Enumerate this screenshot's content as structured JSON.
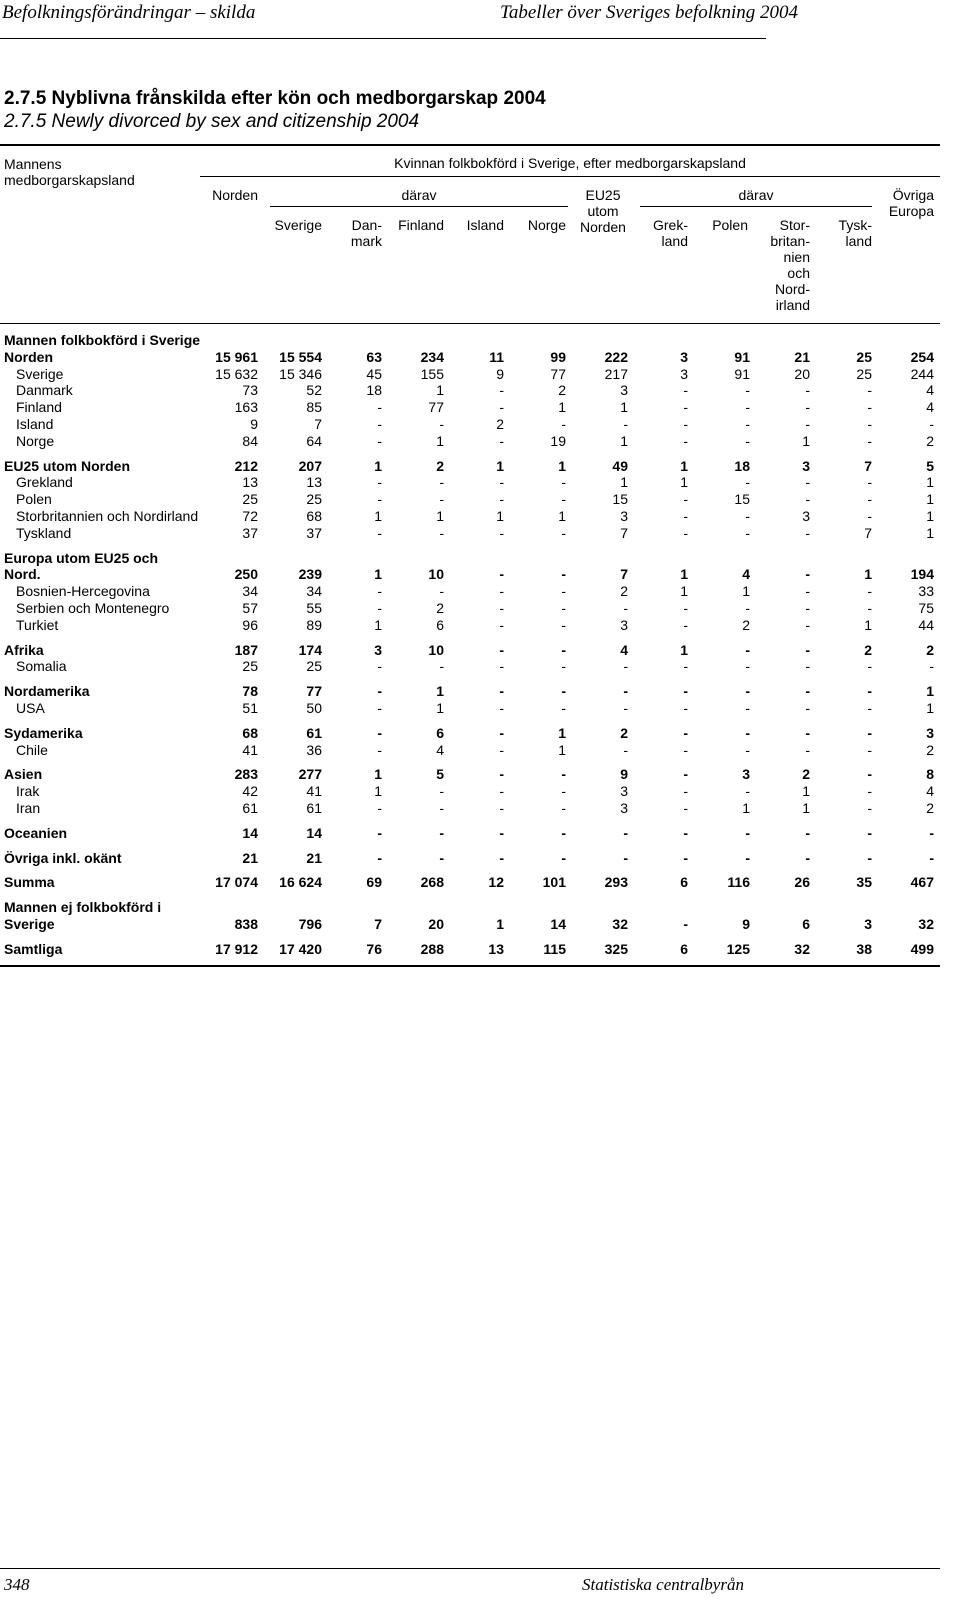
{
  "running_header": {
    "left": "Befolkningsförändringar – skilda",
    "right": "Tabeller över Sveriges befolkning 2004"
  },
  "title_sv": "2.7.5 Nyblivna frånskilda efter kön och medborgarskap 2004",
  "title_en": "2.7.5 Newly divorced by sex and citizenship 2004",
  "header": {
    "stub": "Mannens medborgarskapsland",
    "spanner": "Kvinnan folkbokförd i Sverige, efter medborgarskapsland",
    "norden": "Norden",
    "darav1": "därav",
    "sverige": "Sverige",
    "danmark": "Dan-\nmark",
    "finland": "Finland",
    "island": "Island",
    "norge": "Norge",
    "eu25": "EU25\nutom\nNorden",
    "darav2": "därav",
    "grekland": "Grek-\nland",
    "polen": "Polen",
    "storbritannien": "Stor-\nbritan-\nnien\noch\nNord-\nirland",
    "tyskland": "Tysk-\nland",
    "ovriga": "Övriga\nEuropa"
  },
  "rows": [
    {
      "label": "Mannen folkbokförd i Sverige",
      "section": true,
      "values": []
    },
    {
      "label": "Norden",
      "bold": true,
      "values": [
        "15 961",
        "15 554",
        "63",
        "234",
        "11",
        "99",
        "222",
        "3",
        "91",
        "21",
        "25",
        "254"
      ]
    },
    {
      "label": "Sverige",
      "indent": true,
      "values": [
        "15 632",
        "15 346",
        "45",
        "155",
        "9",
        "77",
        "217",
        "3",
        "91",
        "20",
        "25",
        "244"
      ]
    },
    {
      "label": "Danmark",
      "indent": true,
      "values": [
        "73",
        "52",
        "18",
        "1",
        "-",
        "2",
        "3",
        "-",
        "-",
        "-",
        "-",
        "4"
      ]
    },
    {
      "label": "Finland",
      "indent": true,
      "values": [
        "163",
        "85",
        "-",
        "77",
        "-",
        "1",
        "1",
        "-",
        "-",
        "-",
        "-",
        "4"
      ]
    },
    {
      "label": "Island",
      "indent": true,
      "values": [
        "9",
        "7",
        "-",
        "-",
        "2",
        "-",
        "-",
        "-",
        "-",
        "-",
        "-",
        "-"
      ]
    },
    {
      "label": "Norge",
      "indent": true,
      "values": [
        "84",
        "64",
        "-",
        "1",
        "-",
        "19",
        "1",
        "-",
        "-",
        "1",
        "-",
        "2"
      ]
    },
    {
      "label": "EU25 utom Norden",
      "bold": true,
      "gap": true,
      "values": [
        "212",
        "207",
        "1",
        "2",
        "1",
        "1",
        "49",
        "1",
        "18",
        "3",
        "7",
        "5"
      ]
    },
    {
      "label": "Grekland",
      "indent": true,
      "values": [
        "13",
        "13",
        "-",
        "-",
        "-",
        "-",
        "1",
        "1",
        "-",
        "-",
        "-",
        "1"
      ]
    },
    {
      "label": "Polen",
      "indent": true,
      "values": [
        "25",
        "25",
        "-",
        "-",
        "-",
        "-",
        "15",
        "-",
        "15",
        "-",
        "-",
        "1"
      ]
    },
    {
      "label": "Storbritannien och Nordirland",
      "indent": true,
      "values": [
        "72",
        "68",
        "1",
        "1",
        "1",
        "1",
        "3",
        "-",
        "-",
        "3",
        "-",
        "1"
      ]
    },
    {
      "label": "Tyskland",
      "indent": true,
      "values": [
        "37",
        "37",
        "-",
        "-",
        "-",
        "-",
        "7",
        "-",
        "-",
        "-",
        "7",
        "1"
      ]
    },
    {
      "label": "Europa utom EU25 och",
      "section": true,
      "gap": true,
      "values": []
    },
    {
      "label": "Nord.",
      "bold": true,
      "values": [
        "250",
        "239",
        "1",
        "10",
        "-",
        "-",
        "7",
        "1",
        "4",
        "-",
        "1",
        "194"
      ]
    },
    {
      "label": "Bosnien-Hercegovina",
      "indent": true,
      "values": [
        "34",
        "34",
        "-",
        "-",
        "-",
        "-",
        "2",
        "1",
        "1",
        "-",
        "-",
        "33"
      ]
    },
    {
      "label": "Serbien och Montenegro",
      "indent": true,
      "values": [
        "57",
        "55",
        "-",
        "2",
        "-",
        "-",
        "-",
        "-",
        "-",
        "-",
        "-",
        "75"
      ]
    },
    {
      "label": "Turkiet",
      "indent": true,
      "values": [
        "96",
        "89",
        "1",
        "6",
        "-",
        "-",
        "3",
        "-",
        "2",
        "-",
        "1",
        "44"
      ]
    },
    {
      "label": "Afrika",
      "bold": true,
      "gap": true,
      "values": [
        "187",
        "174",
        "3",
        "10",
        "-",
        "-",
        "4",
        "1",
        "-",
        "-",
        "2",
        "2"
      ]
    },
    {
      "label": "Somalia",
      "indent": true,
      "values": [
        "25",
        "25",
        "-",
        "-",
        "-",
        "-",
        "-",
        "-",
        "-",
        "-",
        "-",
        "-"
      ]
    },
    {
      "label": "Nordamerika",
      "bold": true,
      "gap": true,
      "values": [
        "78",
        "77",
        "-",
        "1",
        "-",
        "-",
        "-",
        "-",
        "-",
        "-",
        "-",
        "1"
      ]
    },
    {
      "label": "USA",
      "indent": true,
      "values": [
        "51",
        "50",
        "-",
        "1",
        "-",
        "-",
        "-",
        "-",
        "-",
        "-",
        "-",
        "1"
      ]
    },
    {
      "label": "Sydamerika",
      "bold": true,
      "gap": true,
      "values": [
        "68",
        "61",
        "-",
        "6",
        "-",
        "1",
        "2",
        "-",
        "-",
        "-",
        "-",
        "3"
      ]
    },
    {
      "label": "Chile",
      "indent": true,
      "values": [
        "41",
        "36",
        "-",
        "4",
        "-",
        "1",
        "-",
        "-",
        "-",
        "-",
        "-",
        "2"
      ]
    },
    {
      "label": "Asien",
      "bold": true,
      "gap": true,
      "values": [
        "283",
        "277",
        "1",
        "5",
        "-",
        "-",
        "9",
        "-",
        "3",
        "2",
        "-",
        "8"
      ]
    },
    {
      "label": "Irak",
      "indent": true,
      "values": [
        "42",
        "41",
        "1",
        "-",
        "-",
        "-",
        "3",
        "-",
        "-",
        "1",
        "-",
        "4"
      ]
    },
    {
      "label": "Iran",
      "indent": true,
      "values": [
        "61",
        "61",
        "-",
        "-",
        "-",
        "-",
        "3",
        "-",
        "1",
        "1",
        "-",
        "2"
      ]
    },
    {
      "label": "Oceanien",
      "bold": true,
      "gap": true,
      "values": [
        "14",
        "14",
        "-",
        "-",
        "-",
        "-",
        "-",
        "-",
        "-",
        "-",
        "-",
        "-"
      ]
    },
    {
      "label": "Övriga inkl. okänt",
      "bold": true,
      "gap": true,
      "values": [
        "21",
        "21",
        "-",
        "-",
        "-",
        "-",
        "-",
        "-",
        "-",
        "-",
        "-",
        "-"
      ]
    },
    {
      "label": "Summa",
      "bold": true,
      "gap": true,
      "values": [
        "17 074",
        "16 624",
        "69",
        "268",
        "12",
        "101",
        "293",
        "6",
        "116",
        "26",
        "35",
        "467"
      ]
    },
    {
      "label": "Mannen ej folkbokförd i",
      "section": true,
      "gap": true,
      "values": []
    },
    {
      "label": "Sverige",
      "bold": true,
      "values": [
        "838",
        "796",
        "7",
        "20",
        "1",
        "14",
        "32",
        "-",
        "9",
        "6",
        "3",
        "32"
      ]
    },
    {
      "label": "Samtliga",
      "bold": true,
      "gap": true,
      "values": [
        "17 912",
        "17 420",
        "76",
        "288",
        "13",
        "115",
        "325",
        "6",
        "125",
        "32",
        "38",
        "499"
      ]
    }
  ],
  "footer": {
    "page": "348",
    "publisher": "Statistiska centralbyrån"
  }
}
